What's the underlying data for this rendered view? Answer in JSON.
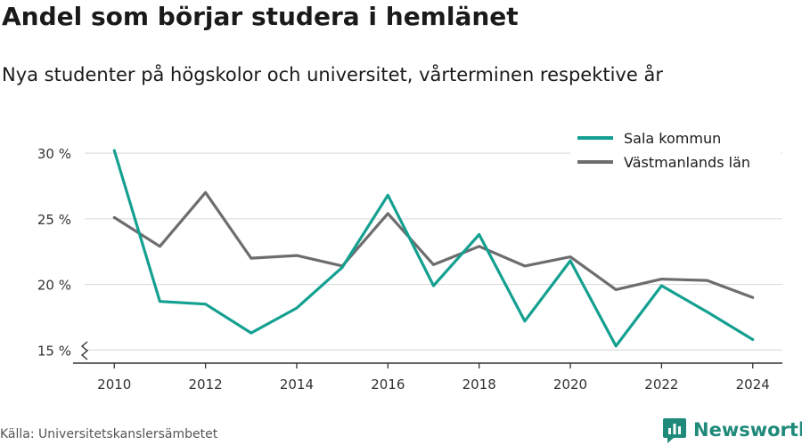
{
  "header": {
    "title": "Andel som börjar studera i hemlänet",
    "subtitle": "Nya studenter på högskolor och universitet, vårterminen respektive år"
  },
  "footer": {
    "source": "Källa: Universitetskanslersämbetet",
    "brand": "Newsworthy"
  },
  "colors": {
    "sala": "#14a091",
    "lan": "#6d6d70",
    "grid": "#dddddd",
    "brand": "#1f8a7a"
  },
  "chart_data": {
    "type": "line",
    "title": "Andel som börjar studera i hemlänet",
    "subtitle": "Nya studenter på högskolor och universitet, vårterminen respektive år",
    "xlabel": "",
    "ylabel": "",
    "x": [
      2010,
      2011,
      2012,
      2013,
      2014,
      2015,
      2016,
      2017,
      2018,
      2019,
      2020,
      2021,
      2022,
      2023,
      2024
    ],
    "x_ticks": [
      2010,
      2012,
      2014,
      2016,
      2018,
      2020,
      2022,
      2024
    ],
    "y_ticks": [
      15,
      20,
      25,
      30
    ],
    "y_tick_labels": [
      "15 %",
      "20 %",
      "25 %",
      "30 %"
    ],
    "ylim": [
      14,
      31.5
    ],
    "grid": true,
    "legend_position": "top-right",
    "series": [
      {
        "name": "Sala kommun",
        "color": "#14a091",
        "values": [
          30.2,
          18.7,
          18.5,
          16.3,
          18.2,
          21.3,
          26.8,
          19.9,
          23.8,
          17.2,
          21.8,
          15.3,
          19.9,
          17.9,
          15.8
        ]
      },
      {
        "name": "Västmanlands län",
        "color": "#6d6d70",
        "values": [
          25.1,
          22.9,
          27.0,
          22.0,
          22.2,
          21.4,
          25.4,
          21.5,
          22.9,
          21.4,
          22.1,
          19.6,
          20.4,
          20.3,
          19.0
        ]
      }
    ]
  }
}
